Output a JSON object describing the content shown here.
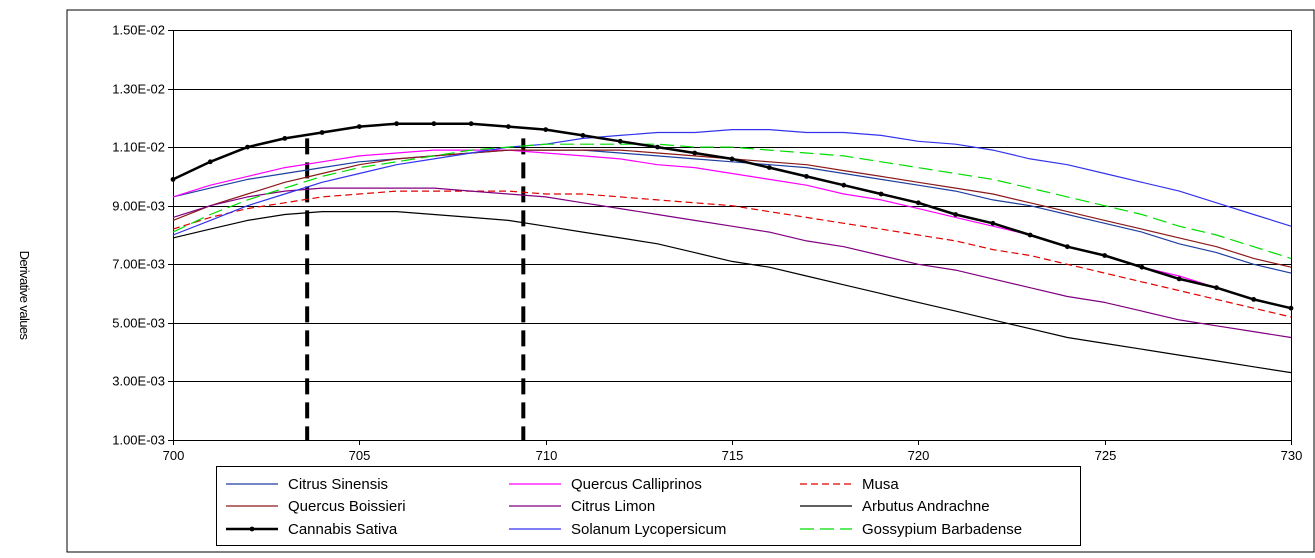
{
  "chart_data": {
    "type": "line",
    "title": "",
    "xlabel": "",
    "ylabel": "Derivative values",
    "xlim": [
      700,
      730
    ],
    "ylim": [
      0.001,
      0.015
    ],
    "x_ticks": [
      700,
      705,
      710,
      715,
      720,
      725,
      730
    ],
    "x_tick_labels": [
      "700",
      "705",
      "710",
      "715",
      "720",
      "725",
      "730"
    ],
    "y_ticks": [
      0.001,
      0.003,
      0.005,
      0.007,
      0.009,
      0.011,
      0.013,
      0.015
    ],
    "y_tick_labels": [
      "1.00E-03",
      "3.00E-03",
      "5.00E-03",
      "7.00E-03",
      "9.00E-03",
      "1.10E-02",
      "1.30E-02",
      "1.50E-02"
    ],
    "grid": "horizontal",
    "legend_position": "bottom",
    "vlines": [
      703.6,
      709.4
    ],
    "x": [
      700,
      701,
      702,
      703,
      704,
      705,
      706,
      707,
      708,
      709,
      710,
      711,
      712,
      713,
      714,
      715,
      716,
      717,
      718,
      719,
      720,
      721,
      722,
      723,
      724,
      725,
      726,
      727,
      728,
      729,
      730
    ],
    "series": [
      {
        "name": "Citrus Sinensis",
        "color": "#1f3fa0",
        "style": "solid",
        "marker": false,
        "values": [
          0.0093,
          0.0096,
          0.0099,
          0.0101,
          0.0103,
          0.0105,
          0.0106,
          0.0107,
          0.0108,
          0.0109,
          0.0109,
          0.0109,
          0.0108,
          0.0107,
          0.0106,
          0.0105,
          0.0104,
          0.0103,
          0.0101,
          0.0099,
          0.0097,
          0.0095,
          0.0092,
          0.009,
          0.0087,
          0.0084,
          0.0081,
          0.0077,
          0.0074,
          0.007,
          0.0067
        ]
      },
      {
        "name": "Quercus Calliprinos",
        "color": "#ff00ff",
        "style": "solid",
        "marker": false,
        "values": [
          0.0093,
          0.0097,
          0.01,
          0.0103,
          0.0105,
          0.0107,
          0.0108,
          0.0109,
          0.0109,
          0.0109,
          0.0108,
          0.0107,
          0.0106,
          0.0104,
          0.0103,
          0.0101,
          0.0099,
          0.0097,
          0.0094,
          0.0092,
          0.0089,
          0.0086,
          0.0083,
          0.008,
          0.0076,
          0.0073,
          0.0069,
          0.0066,
          0.0062,
          0.0058,
          0.0055
        ]
      },
      {
        "name": "Musa",
        "color": "#e00000",
        "style": "dashed",
        "marker": false,
        "values": [
          0.0082,
          0.0086,
          0.0089,
          0.0091,
          0.0093,
          0.0094,
          0.0095,
          0.0095,
          0.0095,
          0.0095,
          0.0094,
          0.0094,
          0.0093,
          0.0092,
          0.0091,
          0.009,
          0.0088,
          0.0086,
          0.0084,
          0.0082,
          0.008,
          0.0078,
          0.0075,
          0.0073,
          0.007,
          0.0067,
          0.0064,
          0.0061,
          0.0058,
          0.0055,
          0.0052
        ]
      },
      {
        "name": "Quercus Boissieri",
        "color": "#8b1a1a",
        "style": "solid",
        "marker": false,
        "values": [
          0.0085,
          0.009,
          0.0094,
          0.0098,
          0.0101,
          0.0104,
          0.0106,
          0.0107,
          0.0108,
          0.0109,
          0.0109,
          0.0109,
          0.0109,
          0.0108,
          0.0107,
          0.0106,
          0.0105,
          0.0104,
          0.0102,
          0.01,
          0.0098,
          0.0096,
          0.0094,
          0.0091,
          0.0088,
          0.0085,
          0.0082,
          0.0079,
          0.0076,
          0.0072,
          0.0069
        ]
      },
      {
        "name": "Citrus Limon",
        "color": "#800080",
        "style": "solid",
        "marker": false,
        "values": [
          0.0086,
          0.009,
          0.0093,
          0.0095,
          0.0096,
          0.0096,
          0.0096,
          0.0096,
          0.0095,
          0.0094,
          0.0093,
          0.0091,
          0.0089,
          0.0087,
          0.0085,
          0.0083,
          0.0081,
          0.0078,
          0.0076,
          0.0073,
          0.007,
          0.0068,
          0.0065,
          0.0062,
          0.0059,
          0.0057,
          0.0054,
          0.0051,
          0.0049,
          0.0047,
          0.0045
        ]
      },
      {
        "name": "Arbutus Andrachne",
        "color": "#000000",
        "style": "solid",
        "marker": false,
        "values": [
          0.0079,
          0.0082,
          0.0085,
          0.0087,
          0.0088,
          0.0088,
          0.0088,
          0.0087,
          0.0086,
          0.0085,
          0.0083,
          0.0081,
          0.0079,
          0.0077,
          0.0074,
          0.0071,
          0.0069,
          0.0066,
          0.0063,
          0.006,
          0.0057,
          0.0054,
          0.0051,
          0.0048,
          0.0045,
          0.0043,
          0.0041,
          0.0039,
          0.0037,
          0.0035,
          0.0033
        ]
      },
      {
        "name": "Cannabis Sativa",
        "color": "#000000",
        "style": "solid",
        "marker": true,
        "values": [
          0.0099,
          0.0105,
          0.011,
          0.0113,
          0.0115,
          0.0117,
          0.0118,
          0.0118,
          0.0118,
          0.0117,
          0.0116,
          0.0114,
          0.0112,
          0.011,
          0.0108,
          0.0106,
          0.0103,
          0.01,
          0.0097,
          0.0094,
          0.0091,
          0.0087,
          0.0084,
          0.008,
          0.0076,
          0.0073,
          0.0069,
          0.0065,
          0.0062,
          0.0058,
          0.0055
        ]
      },
      {
        "name": "Solanum Lycopersicum",
        "color": "#3333ee",
        "style": "solid",
        "marker": false,
        "values": [
          0.008,
          0.0085,
          0.009,
          0.0094,
          0.0098,
          0.0101,
          0.0104,
          0.0106,
          0.0108,
          0.011,
          0.0111,
          0.0113,
          0.0114,
          0.0115,
          0.0115,
          0.0116,
          0.0116,
          0.0115,
          0.0115,
          0.0114,
          0.0112,
          0.0111,
          0.0109,
          0.0106,
          0.0104,
          0.0101,
          0.0098,
          0.0095,
          0.0091,
          0.0087,
          0.0083
        ]
      },
      {
        "name": "Gossypium Barbadense",
        "color": "#00dd00",
        "style": "longdash",
        "marker": false,
        "values": [
          0.0081,
          0.0087,
          0.0092,
          0.0096,
          0.01,
          0.0103,
          0.0105,
          0.0107,
          0.0109,
          0.011,
          0.0111,
          0.0111,
          0.0111,
          0.0111,
          0.011,
          0.011,
          0.0109,
          0.0108,
          0.0107,
          0.0105,
          0.0103,
          0.0101,
          0.0099,
          0.0096,
          0.0093,
          0.009,
          0.0087,
          0.0083,
          0.008,
          0.0076,
          0.0072
        ]
      }
    ]
  }
}
